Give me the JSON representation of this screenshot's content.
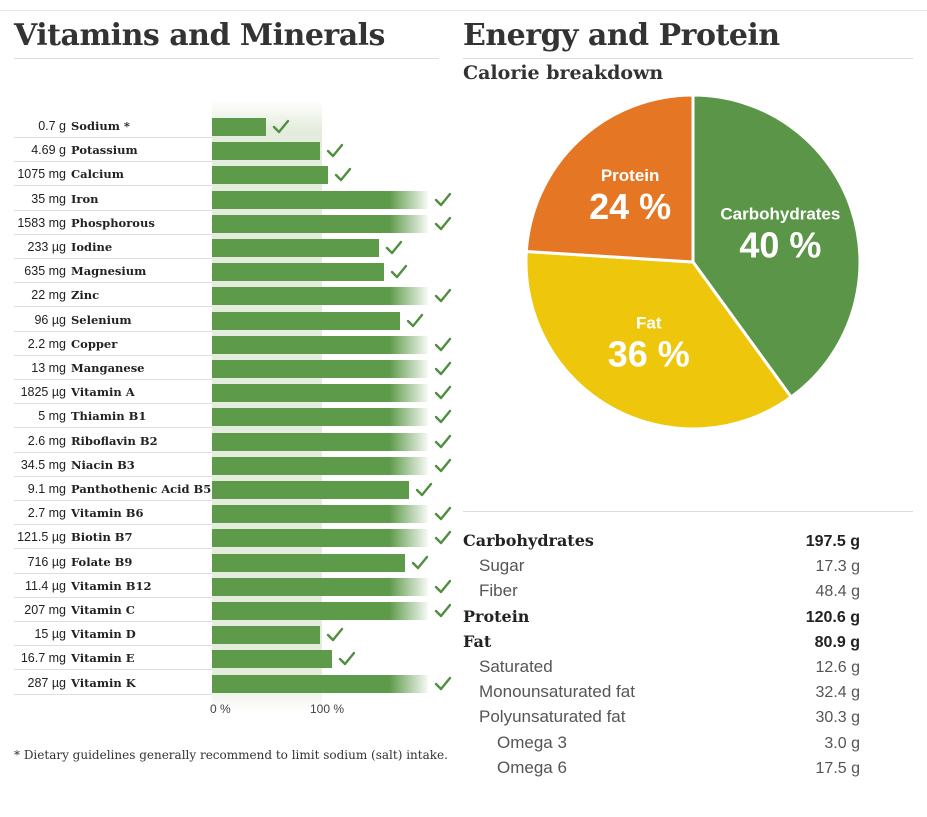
{
  "sections": {
    "vitamins_title": "Vitamins and Minerals",
    "energy_title": "Energy and Protein",
    "calorie_title": "Calorie breakdown"
  },
  "colors": {
    "bar": "#5d9a49",
    "check": "#4f8f3f",
    "carbohydrates": "#5b9548",
    "fat": "#eec60c",
    "protein": "#e57623"
  },
  "chart_data": [
    {
      "type": "bar",
      "orientation": "horizontal",
      "title": "Vitamins and Minerals",
      "xlabel": "",
      "ylabel": "",
      "x_ticks": [
        "0 %",
        "100 %"
      ],
      "value_unit": "% of recommended daily intake",
      "display_cap_percent": 200,
      "nutrients": [
        {
          "amount": "0.7 g",
          "name": "Sodium *",
          "percent": 50
        },
        {
          "amount": "4.69 g",
          "name": "Potassium",
          "percent": 100
        },
        {
          "amount": "1075 mg",
          "name": "Calcium",
          "percent": 107
        },
        {
          "amount": "35 mg",
          "name": "Iron",
          "percent": 200
        },
        {
          "amount": "1583 mg",
          "name": "Phosphorous",
          "percent": 200
        },
        {
          "amount": "233 µg",
          "name": "Iodine",
          "percent": 155
        },
        {
          "amount": "635 mg",
          "name": "Magnesium",
          "percent": 159
        },
        {
          "amount": "22 mg",
          "name": "Zinc",
          "percent": 200
        },
        {
          "amount": "96 µg",
          "name": "Selenium",
          "percent": 174
        },
        {
          "amount": "2.2 mg",
          "name": "Copper",
          "percent": 200
        },
        {
          "amount": "13 mg",
          "name": "Manganese",
          "percent": 200
        },
        {
          "amount": "1825 µg",
          "name": "Vitamin A",
          "percent": 200
        },
        {
          "amount": "5 mg",
          "name": "Thiamin B1",
          "percent": 200
        },
        {
          "amount": "2.6 mg",
          "name": "Riboflavin B2",
          "percent": 200
        },
        {
          "amount": "34.5 mg",
          "name": "Niacin B3",
          "percent": 200
        },
        {
          "amount": "9.1 mg",
          "name": "Panthothenic Acid B5",
          "percent": 182
        },
        {
          "amount": "2.7 mg",
          "name": "Vitamin B6",
          "percent": 200
        },
        {
          "amount": "121.5 µg",
          "name": "Biotin B7",
          "percent": 200
        },
        {
          "amount": "716 µg",
          "name": "Folate B9",
          "percent": 179
        },
        {
          "amount": "11.4 µg",
          "name": "Vitamin B12",
          "percent": 200
        },
        {
          "amount": "207 mg",
          "name": "Vitamin C",
          "percent": 200
        },
        {
          "amount": "15 µg",
          "name": "Vitamin D",
          "percent": 100
        },
        {
          "amount": "16.7 mg",
          "name": "Vitamin E",
          "percent": 111
        },
        {
          "amount": "287 µg",
          "name": "Vitamin K",
          "percent": 200
        }
      ],
      "footnote": "* Dietary guidelines generally recommend to limit sodium (salt) intake."
    },
    {
      "type": "pie",
      "title": "Calorie breakdown",
      "slices": [
        {
          "label": "Carbohydrates",
          "value": 40,
          "display": "40 %"
        },
        {
          "label": "Fat",
          "value": 36,
          "display": "36 %"
        },
        {
          "label": "Protein",
          "value": 24,
          "display": "24 %"
        }
      ]
    }
  ],
  "nutrition_table": [
    {
      "label": "Carbohydrates",
      "value": "197.5 g",
      "level": 0
    },
    {
      "label": "Sugar",
      "value": "17.3 g",
      "level": 1
    },
    {
      "label": "Fiber",
      "value": "48.4 g",
      "level": 1
    },
    {
      "label": "Protein",
      "value": "120.6 g",
      "level": 0
    },
    {
      "label": "Fat",
      "value": "80.9 g",
      "level": 0
    },
    {
      "label": "Saturated",
      "value": "12.6 g",
      "level": 1
    },
    {
      "label": "Monounsaturated fat",
      "value": "32.4 g",
      "level": 1
    },
    {
      "label": "Polyunsaturated fat",
      "value": "30.3 g",
      "level": 1
    },
    {
      "label": "Omega 3",
      "value": "3.0 g",
      "level": 2
    },
    {
      "label": "Omega 6",
      "value": "17.5 g",
      "level": 2
    }
  ]
}
